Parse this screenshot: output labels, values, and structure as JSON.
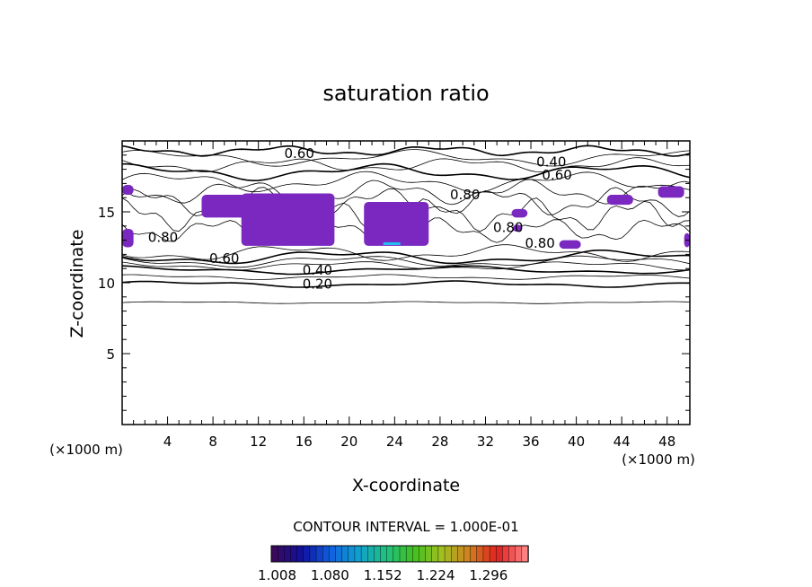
{
  "chart_data": {
    "type": "heatmap",
    "title": "saturation ratio",
    "xlabel": "X-coordinate",
    "ylabel": "Z-coordinate",
    "x_unit_left": "(×1000 m)",
    "x_unit_right": "(×1000 m)",
    "xlim": [
      0,
      50
    ],
    "ylim": [
      0,
      20
    ],
    "x_ticks": [
      4,
      8,
      12,
      16,
      20,
      24,
      28,
      32,
      36,
      40,
      44,
      48
    ],
    "y_ticks": [
      5,
      10,
      15
    ],
    "contour_interval_label": "CONTOUR INTERVAL = 1.000E-01",
    "colorbar_ticks": [
      "1.008",
      "1.080",
      "1.152",
      "1.224",
      "1.296"
    ],
    "colorbar_min": 1.0,
    "colorbar_max": 1.35,
    "colorbar_colors": [
      "#3a0a5a",
      "#1010a0",
      "#1060e0",
      "#10a0d0",
      "#20c080",
      "#40c020",
      "#a0c020",
      "#d08020",
      "#e02020",
      "#ff8080"
    ],
    "fill_color": "#7a28c0",
    "contour_labels": [
      {
        "text": "0.60",
        "x": 15.6,
        "y": 19.1
      },
      {
        "text": "0.40",
        "x": 37.8,
        "y": 18.5
      },
      {
        "text": "0.60",
        "x": 38.3,
        "y": 17.6
      },
      {
        "text": "0.80",
        "x": 30.2,
        "y": 16.2
      },
      {
        "text": "0.80",
        "x": 3.6,
        "y": 13.2
      },
      {
        "text": "0.80",
        "x": 34.0,
        "y": 13.9
      },
      {
        "text": "0.80",
        "x": 36.8,
        "y": 12.8
      },
      {
        "text": "0.60",
        "x": 9.0,
        "y": 11.7
      },
      {
        "text": "0.40",
        "x": 17.2,
        "y": 10.9
      },
      {
        "text": "0.20",
        "x": 17.2,
        "y": 9.9
      }
    ],
    "supersaturated_regions": [
      {
        "x": [
          0.0,
          1.0
        ],
        "z": [
          16.2,
          16.9
        ]
      },
      {
        "x": [
          7.0,
          12.0
        ],
        "z": [
          14.6,
          16.2
        ]
      },
      {
        "x": [
          10.5,
          18.7
        ],
        "z": [
          12.6,
          16.3
        ]
      },
      {
        "x": [
          21.3,
          27.0
        ],
        "z": [
          12.6,
          15.7
        ]
      },
      {
        "x": [
          0.0,
          1.0
        ],
        "z": [
          12.5,
          13.8
        ]
      },
      {
        "x": [
          34.3,
          35.7
        ],
        "z": [
          14.6,
          15.2
        ]
      },
      {
        "x": [
          42.7,
          45.0
        ],
        "z": [
          15.5,
          16.2
        ]
      },
      {
        "x": [
          47.2,
          49.5
        ],
        "z": [
          16.0,
          16.8
        ]
      },
      {
        "x": [
          49.5,
          50.0
        ],
        "z": [
          12.5,
          13.5
        ]
      },
      {
        "x": [
          38.5,
          40.4
        ],
        "z": [
          12.4,
          13.0
        ]
      },
      {
        "x": [
          34.4,
          35.2
        ],
        "z": [
          13.6,
          14.1
        ]
      }
    ],
    "max_region": {
      "x": [
        23.0,
        24.5
      ],
      "z": [
        12.7,
        12.85
      ]
    },
    "grid": false,
    "legend": "bottom-center colorbar"
  }
}
